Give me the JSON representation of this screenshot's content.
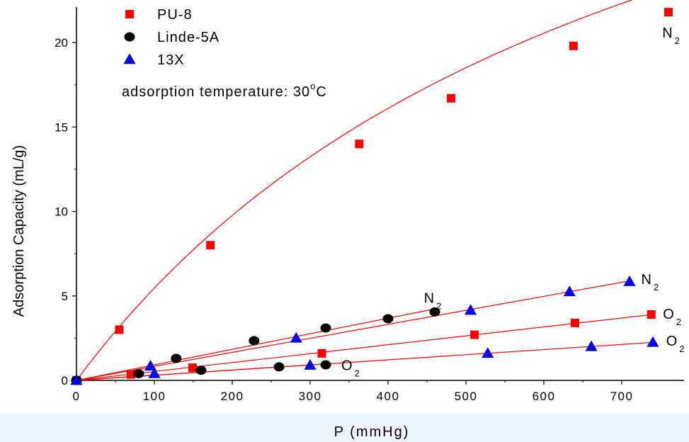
{
  "chart_data": {
    "type": "scatter",
    "xlabel": "P (mmHg)",
    "ylabel": "Adsorption Capacity (mL/g)",
    "xlim": [
      0,
      780
    ],
    "ylim": [
      0,
      22.1
    ],
    "x_ticks": [
      0,
      100,
      200,
      300,
      400,
      500,
      600,
      700
    ],
    "y_ticks": [
      0,
      5,
      10,
      15,
      20
    ],
    "grid": false,
    "legend_position": "top-left",
    "annotation_text": "adsorption temperature:  30",
    "annotation_unit": "C",
    "annotation_degree": "o",
    "series": [
      {
        "name": "PU-8",
        "gas": "N",
        "gas_sub": "2",
        "marker": "square",
        "color": "#ff0000",
        "x": [
          0,
          55,
          172,
          363,
          481,
          638,
          760
        ],
        "y": [
          0,
          3.0,
          8.0,
          14.0,
          16.7,
          19.8,
          21.8
        ],
        "fit": "curve"
      },
      {
        "name": "PU-8",
        "gas": "O",
        "gas_sub": "2",
        "marker": "square",
        "color": "#ff0000",
        "x": [
          0,
          70,
          149,
          315,
          511,
          640,
          738
        ],
        "y": [
          0,
          0.35,
          0.75,
          1.6,
          2.7,
          3.4,
          3.9
        ],
        "fit": "line"
      },
      {
        "name": "Linde-5A",
        "gas": "N",
        "gas_sub": "2",
        "marker": "circle",
        "color": "#000000",
        "x": [
          0,
          80,
          128,
          228,
          320,
          400,
          460
        ],
        "y": [
          0,
          0.4,
          1.3,
          2.35,
          3.1,
          3.65,
          4.05
        ],
        "fit": "line"
      },
      {
        "name": "Linde-5A",
        "gas": "O",
        "gas_sub": "2",
        "marker": "circle",
        "color": "#000000",
        "x": [
          0,
          160,
          260,
          320
        ],
        "y": [
          0,
          0.6,
          0.8,
          0.92
        ],
        "fit": "line"
      },
      {
        "name": "13X",
        "gas": "N",
        "gas_sub": "2",
        "marker": "triangle",
        "color": "#0000ff",
        "x": [
          0,
          95,
          282,
          506,
          633,
          710
        ],
        "y": [
          0,
          0.85,
          2.5,
          4.15,
          5.25,
          5.85
        ],
        "fit": "line"
      },
      {
        "name": "13X",
        "gas": "O",
        "gas_sub": "2",
        "marker": "triangle",
        "color": "#0000ff",
        "x": [
          0,
          100,
          300,
          528,
          661,
          740
        ],
        "y": [
          0,
          0.4,
          0.9,
          1.6,
          2.0,
          2.25
        ],
        "fit": "line"
      }
    ],
    "legend": [
      {
        "label": "PU-8",
        "marker": "square",
        "color": "#ff0000"
      },
      {
        "label": "Linde-5A",
        "marker": "circle",
        "color": "#000000"
      },
      {
        "label": "13X",
        "marker": "triangle",
        "color": "#0000ff"
      }
    ],
    "curve_labels": [
      {
        "main": "N",
        "sub": "2",
        "x": 752,
        "y": 20.3
      },
      {
        "main": "N",
        "sub": "2",
        "x": 446,
        "y": 4.6
      },
      {
        "main": "N",
        "sub": "2",
        "x": 725,
        "y": 5.7
      },
      {
        "main": "O",
        "sub": "2",
        "x": 753,
        "y": 3.65
      },
      {
        "main": "O",
        "sub": "2",
        "x": 757,
        "y": 2.05
      },
      {
        "main": "O",
        "sub": "2",
        "x": 340,
        "y": 0.6
      }
    ]
  }
}
